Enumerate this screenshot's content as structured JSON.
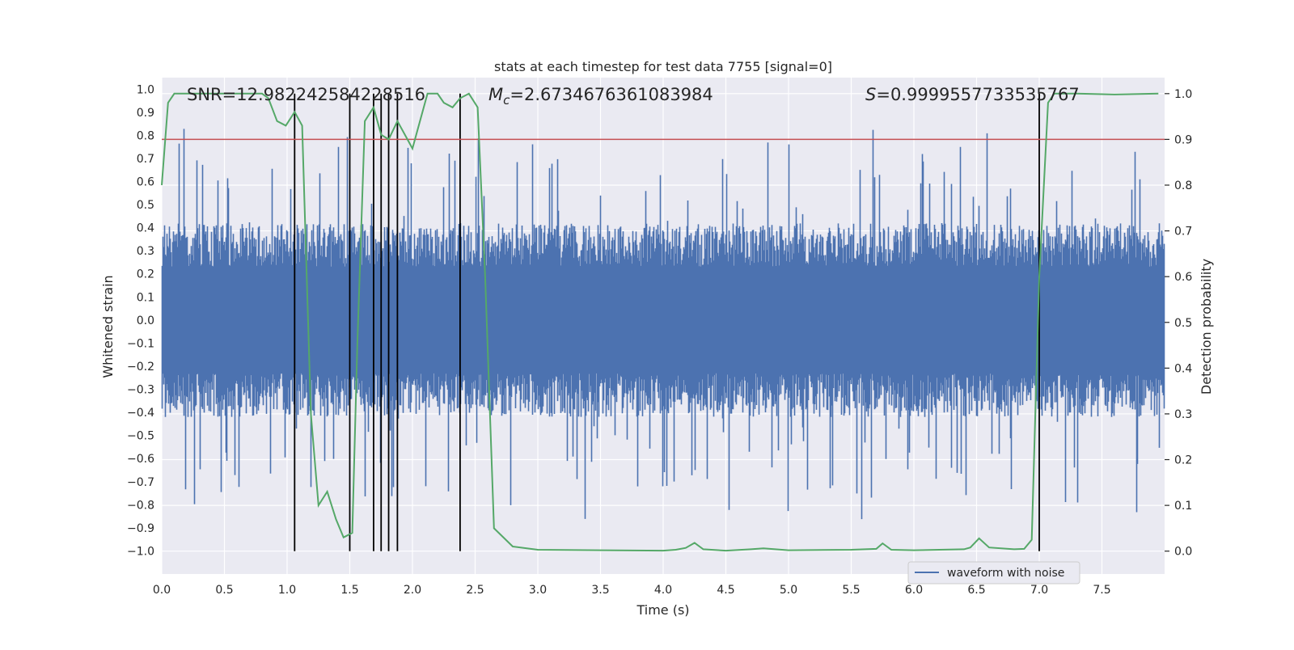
{
  "chart_data": {
    "type": "line",
    "title": "stats at each timestep for test data 7755 [signal=0]",
    "xlabel": "Time (s)",
    "ylabel_left": "Whitened strain",
    "ylabel_right": "Detection probability",
    "xlim": [
      0.0,
      8.0
    ],
    "ylim_left": [
      -1.1,
      1.05
    ],
    "ylim_right": [
      -0.05,
      1.035
    ],
    "x_ticks": [
      0.0,
      0.5,
      1.0,
      1.5,
      2.0,
      2.5,
      3.0,
      3.5,
      4.0,
      4.5,
      5.0,
      5.5,
      6.0,
      6.5,
      7.0,
      7.5
    ],
    "x_tick_labels": [
      "0.0",
      "0.5",
      "1.0",
      "1.5",
      "2.0",
      "2.5",
      "3.0",
      "3.5",
      "4.0",
      "4.5",
      "5.0",
      "5.5",
      "6.0",
      "6.5",
      "7.0",
      "7.5"
    ],
    "y_left_ticks": [
      1.0,
      0.9,
      0.8,
      0.7,
      0.6,
      0.5,
      0.4,
      0.3,
      0.2,
      0.1,
      0.0,
      -0.1,
      -0.2,
      -0.3,
      -0.4,
      -0.5,
      -0.6,
      -0.7,
      -0.8,
      -0.9,
      -1.0
    ],
    "y_left_tick_labels": [
      "1.0",
      "0.9",
      "0.8",
      "0.7",
      "0.6",
      "0.5",
      "0.4",
      "0.3",
      "0.2",
      "0.1",
      "0.0",
      "−0.1",
      "−0.2",
      "−0.3",
      "−0.4",
      "−0.5",
      "−0.6",
      "−0.7",
      "−0.8",
      "−0.9",
      "−1.0"
    ],
    "y_right_ticks": [
      1.0,
      0.9,
      0.8,
      0.7,
      0.6,
      0.5,
      0.4,
      0.3,
      0.2,
      0.1,
      0.0
    ],
    "y_right_tick_labels": [
      "1.0",
      "0.9",
      "0.8",
      "0.7",
      "0.6",
      "0.5",
      "0.4",
      "0.3",
      "0.2",
      "0.1",
      "0.0"
    ],
    "annotations": {
      "snr": "SNR=12.982242584228516",
      "mc_symbol": "M",
      "mc_sub": "c",
      "mc_value": "=2.6734676361083984",
      "s_symbol": "S",
      "s_value": "=0.9999557733535767"
    },
    "threshold_right": 0.9,
    "vertical_markers_x": [
      1.06,
      1.5,
      1.69,
      1.75,
      1.81,
      1.88,
      2.38,
      7.0
    ],
    "waveform": {
      "name": "waveform with noise",
      "duration": 8.0,
      "typical_envelope": 0.42,
      "max_abs": 0.96
    },
    "probability": {
      "name": "detection probability",
      "x": [
        0.0,
        0.05,
        0.1,
        0.15,
        0.8,
        0.85,
        0.92,
        0.99,
        1.06,
        1.12,
        1.19,
        1.25,
        1.32,
        1.39,
        1.45,
        1.52,
        1.56,
        1.62,
        1.69,
        1.75,
        1.81,
        1.88,
        2.0,
        2.12,
        2.2,
        2.25,
        2.32,
        2.38,
        2.45,
        2.52,
        2.58,
        2.65,
        2.8,
        3.0,
        3.5,
        4.0,
        4.1,
        4.18,
        4.25,
        4.32,
        4.5,
        4.7,
        4.8,
        5.0,
        5.5,
        5.7,
        5.75,
        5.82,
        6.0,
        6.4,
        6.45,
        6.52,
        6.6,
        6.8,
        6.88,
        6.94,
        7.0,
        7.07,
        7.12,
        7.3,
        7.6,
        7.95
      ],
      "y": [
        0.8,
        0.98,
        1.0,
        1.0,
        1.0,
        0.99,
        0.94,
        0.93,
        0.96,
        0.93,
        0.3,
        0.1,
        0.13,
        0.07,
        0.03,
        0.04,
        0.45,
        0.94,
        0.97,
        0.91,
        0.9,
        0.94,
        0.88,
        1.0,
        1.0,
        0.98,
        0.97,
        0.99,
        1.0,
        0.97,
        0.6,
        0.05,
        0.01,
        0.003,
        0.002,
        0.001,
        0.003,
        0.007,
        0.018,
        0.004,
        0.001,
        0.004,
        0.006,
        0.002,
        0.003,
        0.005,
        0.017,
        0.003,
        0.002,
        0.004,
        0.008,
        0.028,
        0.008,
        0.004,
        0.005,
        0.025,
        0.6,
        0.98,
        1.0,
        1.0,
        0.998,
        1.0
      ]
    }
  },
  "legend": {
    "label": "waveform with noise",
    "colors": {
      "waveform": "#4c72b0",
      "probability": "#55a868",
      "threshold": "#c44e52",
      "markers": "#000000"
    }
  }
}
